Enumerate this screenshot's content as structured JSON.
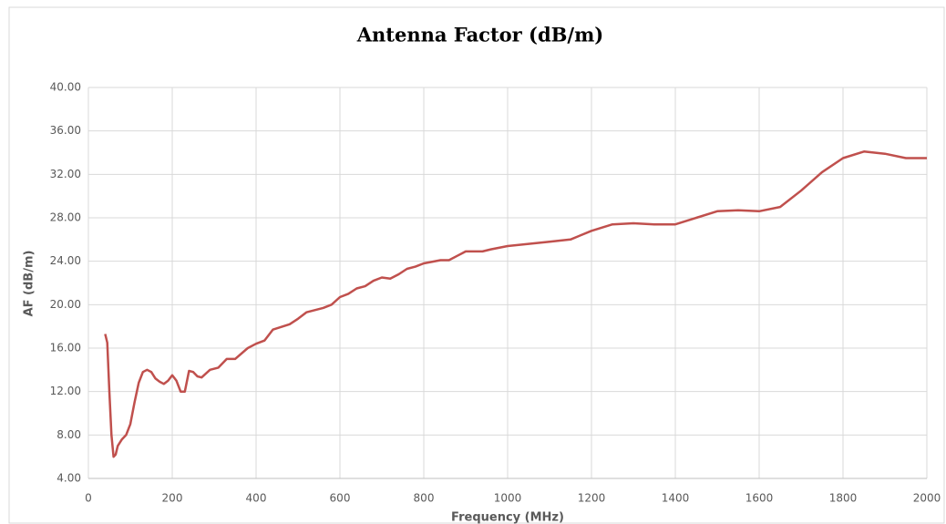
{
  "chart_data": {
    "type": "line",
    "title": "Antenna Factor (dB/m)",
    "xlabel": "Frequency (MHz)",
    "ylabel": "AF (dB/m)",
    "x": [
      40,
      45,
      50,
      55,
      60,
      65,
      70,
      80,
      90,
      100,
      110,
      120,
      130,
      140,
      150,
      160,
      170,
      180,
      190,
      200,
      210,
      220,
      230,
      240,
      250,
      260,
      270,
      290,
      310,
      330,
      350,
      380,
      400,
      420,
      440,
      480,
      500,
      520,
      560,
      580,
      600,
      620,
      640,
      660,
      680,
      700,
      720,
      740,
      760,
      780,
      800,
      840,
      860,
      880,
      900,
      940,
      960,
      1000,
      1050,
      1100,
      1150,
      1200,
      1250,
      1300,
      1350,
      1400,
      1450,
      1500,
      1550,
      1600,
      1650,
      1700,
      1750,
      1800,
      1850,
      1900,
      1950,
      2000
    ],
    "series": [
      {
        "name": "AF (dB/m)",
        "color": "#c0504d",
        "values": [
          17.3,
          16.5,
          12,
          8,
          6,
          6.2,
          7,
          7.6,
          8,
          9,
          11,
          12.8,
          13.8,
          14,
          13.8,
          13.2,
          12.9,
          12.7,
          13,
          13.5,
          13,
          12,
          12,
          13.9,
          13.8,
          13.4,
          13.3,
          14,
          14.2,
          15,
          15,
          16,
          16.4,
          16.7,
          17.7,
          18.2,
          18.7,
          19.3,
          19.7,
          20,
          20.7,
          21,
          21.5,
          21.7,
          22.2,
          22.5,
          22.4,
          22.8,
          23.3,
          23.5,
          23.8,
          24.1,
          24.1,
          24.5,
          24.9,
          24.9,
          25.1,
          25.4,
          25.6,
          25.8,
          26,
          26.8,
          27.4,
          27.5,
          27.4,
          27.4,
          28,
          28.6,
          28.7,
          28.6,
          29,
          30.5,
          32.2,
          33.5,
          34.1,
          33.9,
          33.5,
          33.5
        ]
      }
    ],
    "xlim": [
      0,
      2000
    ],
    "xticks": [
      0,
      200,
      400,
      600,
      800,
      1000,
      1200,
      1400,
      1600,
      1800,
      2000
    ],
    "ylim": [
      4,
      40
    ],
    "yticks": [
      {
        "value": 4,
        "label": "4.00"
      },
      {
        "value": 8,
        "label": "8.00"
      },
      {
        "value": 12,
        "label": "12.00"
      },
      {
        "value": 16,
        "label": "16.00"
      },
      {
        "value": 20,
        "label": "20.00"
      },
      {
        "value": 24,
        "label": "24.00"
      },
      {
        "value": 28,
        "label": "28.00"
      },
      {
        "value": 32,
        "label": "32.00"
      },
      {
        "value": 36,
        "label": "36.00"
      },
      {
        "value": 40,
        "label": "40.00"
      }
    ],
    "grid": true
  }
}
